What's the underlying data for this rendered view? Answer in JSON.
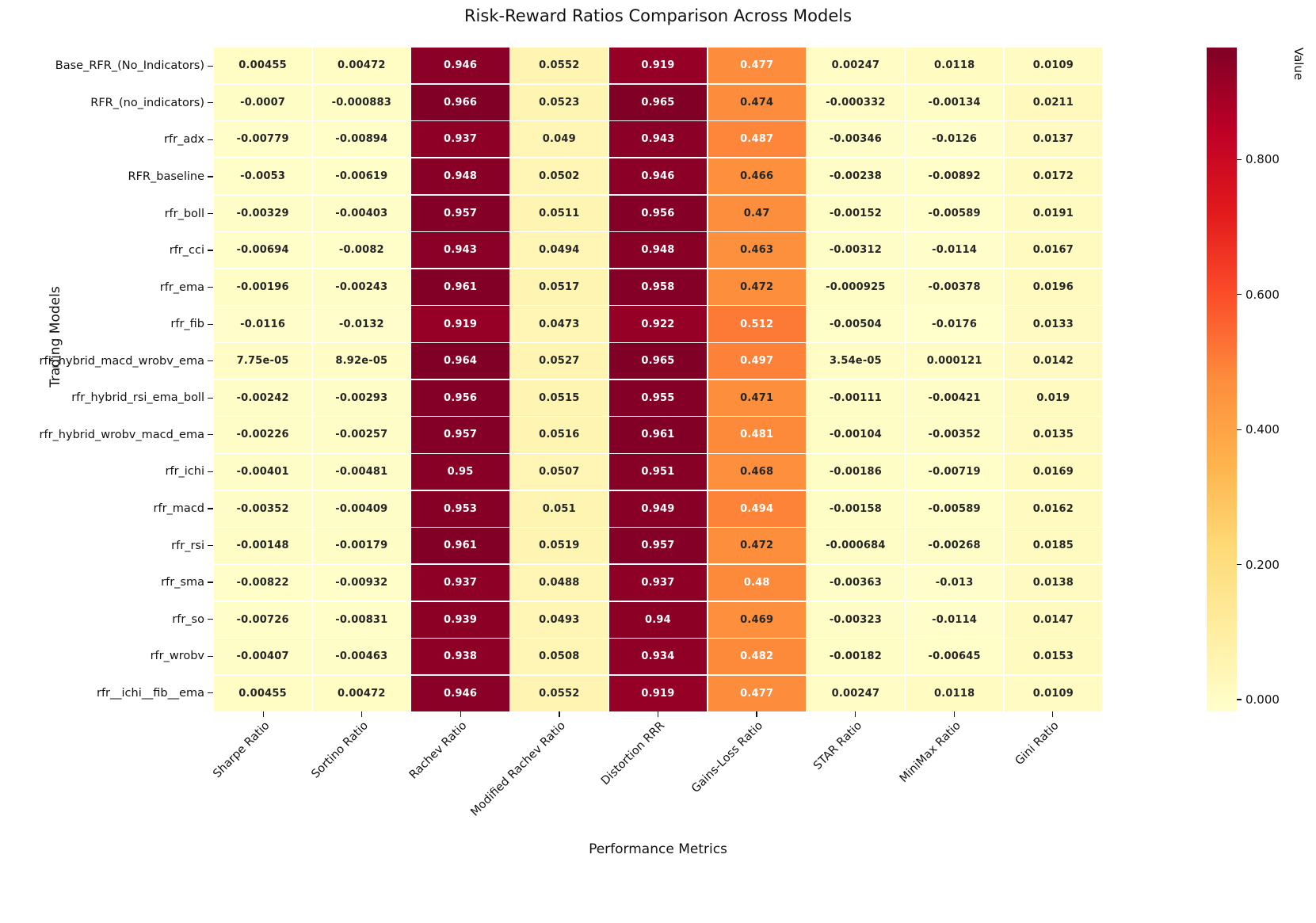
{
  "chart_data": {
    "type": "heatmap",
    "title": "Risk-Reward Ratios Comparison Across Models",
    "xlabel": "Performance Metrics",
    "ylabel": "Trading Models",
    "colorbar_label": "Value",
    "colormap": "YlOrRd",
    "colormap_anchors": [
      "#ffffcc",
      "#ffeda0",
      "#fed976",
      "#feb24c",
      "#fd8d3c",
      "#fc4e2a",
      "#e31a1c",
      "#bd0026",
      "#800026"
    ],
    "vmin": -0.0176,
    "vmax": 0.966,
    "text_white_above": 0.4745,
    "dark_text_color": "#262626",
    "white_text_color": "#ffffff",
    "colorbar_ticks": [
      "0.000",
      "0.200",
      "0.400",
      "0.600",
      "0.800"
    ],
    "categories": [
      "Sharpe Ratio",
      "Sortino Ratio",
      "Rachev Ratio",
      "Modified Rachev Ratio",
      "Distortion RRR",
      "Gains-Loss Ratio",
      "STAR Ratio",
      "MiniMax Ratio",
      "Gini Ratio"
    ],
    "rows": [
      "Base_RFR_(No_Indicators)",
      "RFR_(no_indicators)",
      "rfr_adx",
      "RFR_baseline",
      "rfr_boll",
      "rfr_cci",
      "rfr_ema",
      "rfr_fib",
      "rfr_hybrid_macd_wrobv_ema",
      "rfr_hybrid_rsi_ema_boll",
      "rfr_hybrid_wrobv_macd_ema",
      "rfr_ichi",
      "rfr_macd",
      "rfr_rsi",
      "rfr_sma",
      "rfr_so",
      "rfr_wrobv",
      "rfr__ichi__fib__ema"
    ],
    "values": [
      [
        "0.00455",
        "0.00472",
        "0.946",
        "0.0552",
        "0.919",
        "0.477",
        "0.00247",
        "0.0118",
        "0.0109"
      ],
      [
        "-0.0007",
        "-0.000883",
        "0.966",
        "0.0523",
        "0.965",
        "0.474",
        "-0.000332",
        "-0.00134",
        "0.0211"
      ],
      [
        "-0.00779",
        "-0.00894",
        "0.937",
        "0.049",
        "0.943",
        "0.487",
        "-0.00346",
        "-0.0126",
        "0.0137"
      ],
      [
        "-0.0053",
        "-0.00619",
        "0.948",
        "0.0502",
        "0.946",
        "0.466",
        "-0.00238",
        "-0.00892",
        "0.0172"
      ],
      [
        "-0.00329",
        "-0.00403",
        "0.957",
        "0.0511",
        "0.956",
        "0.47",
        "-0.00152",
        "-0.00589",
        "0.0191"
      ],
      [
        "-0.00694",
        "-0.0082",
        "0.943",
        "0.0494",
        "0.948",
        "0.463",
        "-0.00312",
        "-0.0114",
        "0.0167"
      ],
      [
        "-0.00196",
        "-0.00243",
        "0.961",
        "0.0517",
        "0.958",
        "0.472",
        "-0.000925",
        "-0.00378",
        "0.0196"
      ],
      [
        "-0.0116",
        "-0.0132",
        "0.919",
        "0.0473",
        "0.922",
        "0.512",
        "-0.00504",
        "-0.0176",
        "0.0133"
      ],
      [
        "7.75e-05",
        "8.92e-05",
        "0.964",
        "0.0527",
        "0.965",
        "0.497",
        "3.54e-05",
        "0.000121",
        "0.0142"
      ],
      [
        "-0.00242",
        "-0.00293",
        "0.956",
        "0.0515",
        "0.955",
        "0.471",
        "-0.00111",
        "-0.00421",
        "0.019"
      ],
      [
        "-0.00226",
        "-0.00257",
        "0.957",
        "0.0516",
        "0.961",
        "0.481",
        "-0.00104",
        "-0.00352",
        "0.0135"
      ],
      [
        "-0.00401",
        "-0.00481",
        "0.95",
        "0.0507",
        "0.951",
        "0.468",
        "-0.00186",
        "-0.00719",
        "0.0169"
      ],
      [
        "-0.00352",
        "-0.00409",
        "0.953",
        "0.051",
        "0.949",
        "0.494",
        "-0.00158",
        "-0.00589",
        "0.0162"
      ],
      [
        "-0.00148",
        "-0.00179",
        "0.961",
        "0.0519",
        "0.957",
        "0.472",
        "-0.000684",
        "-0.00268",
        "0.0185"
      ],
      [
        "-0.00822",
        "-0.00932",
        "0.937",
        "0.0488",
        "0.937",
        "0.48",
        "-0.00363",
        "-0.013",
        "0.0138"
      ],
      [
        "-0.00726",
        "-0.00831",
        "0.939",
        "0.0493",
        "0.94",
        "0.469",
        "-0.00323",
        "-0.0114",
        "0.0147"
      ],
      [
        "-0.00407",
        "-0.00463",
        "0.938",
        "0.0508",
        "0.934",
        "0.482",
        "-0.00182",
        "-0.00645",
        "0.0153"
      ],
      [
        "0.00455",
        "0.00472",
        "0.946",
        "0.0552",
        "0.919",
        "0.477",
        "0.00247",
        "0.0118",
        "0.0109"
      ]
    ]
  }
}
